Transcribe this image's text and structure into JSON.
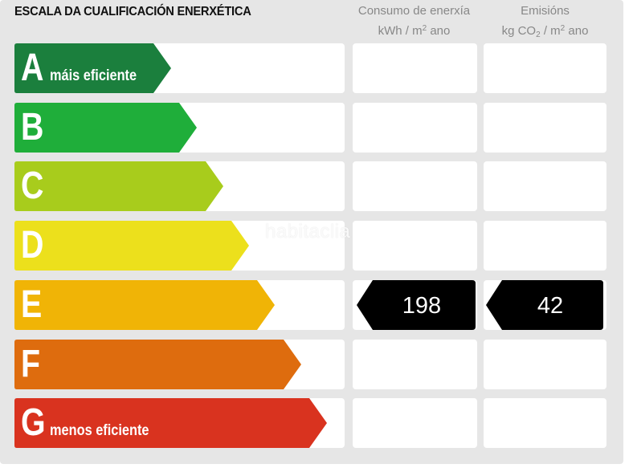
{
  "header": {
    "title": "ESCALA DA CUALIFICACIÓN ENERXÉTICA",
    "consumo": {
      "line1": "Consumo de enerxía",
      "unit_pre": "kWh / m",
      "unit_sup": "2",
      "unit_post": " ano"
    },
    "emisions": {
      "line1": "Emisións",
      "unit_pre": "kg CO",
      "unit_sub": "2",
      "unit_mid": " / m",
      "unit_sup": "2",
      "unit_post": " ano"
    }
  },
  "watermark": "habitaclia",
  "ratings": [
    {
      "letter": "A",
      "sublabel": "máis eficiente",
      "color": "#1b7f3d"
    },
    {
      "letter": "B",
      "sublabel": "",
      "color": "#1fae3a"
    },
    {
      "letter": "C",
      "sublabel": "",
      "color": "#a8cc1c"
    },
    {
      "letter": "D",
      "sublabel": "",
      "color": "#ece01c"
    },
    {
      "letter": "E",
      "sublabel": "",
      "color": "#f0b406"
    },
    {
      "letter": "F",
      "sublabel": "",
      "color": "#de6c0e"
    },
    {
      "letter": "G",
      "sublabel": "menos eficiente",
      "color": "#d9331f"
    }
  ],
  "result": {
    "rating_index": 4,
    "consumo_value": "198",
    "emisions_value": "42",
    "marker_color": "#000000"
  }
}
